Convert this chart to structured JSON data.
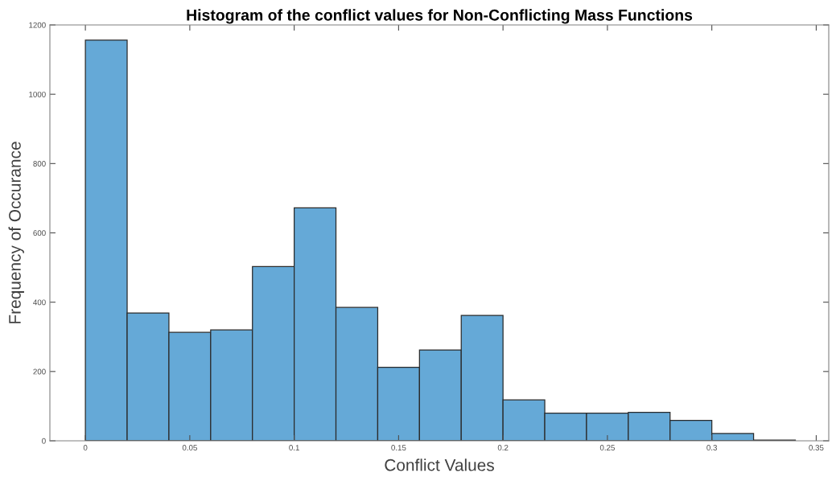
{
  "chart_data": {
    "type": "histogram",
    "title": "Histogram of the conflict values for Non-Conflicting Mass Functions",
    "xlabel": "Conflict Values",
    "ylabel": "Frequency of Occurance",
    "bins": [
      0,
      0.02,
      0.04,
      0.06,
      0.08,
      0.1,
      0.12,
      0.14,
      0.16,
      0.18,
      0.2,
      0.22,
      0.24,
      0.26,
      0.28,
      0.3,
      0.32,
      0.34
    ],
    "values": [
      1156,
      369,
      313,
      320,
      503,
      672,
      385,
      212,
      262,
      362,
      118,
      80,
      80,
      82,
      59,
      21,
      2
    ],
    "color": "#65a9d7",
    "xlim": [
      -0.017,
      0.356
    ],
    "xticks": [
      0,
      0.05,
      0.1,
      0.15,
      0.2,
      0.25,
      0.3,
      0.35
    ],
    "ylim": [
      0,
      1200
    ],
    "yticks": [
      0,
      200,
      400,
      600,
      800,
      1000,
      1200
    ],
    "grid": false
  }
}
